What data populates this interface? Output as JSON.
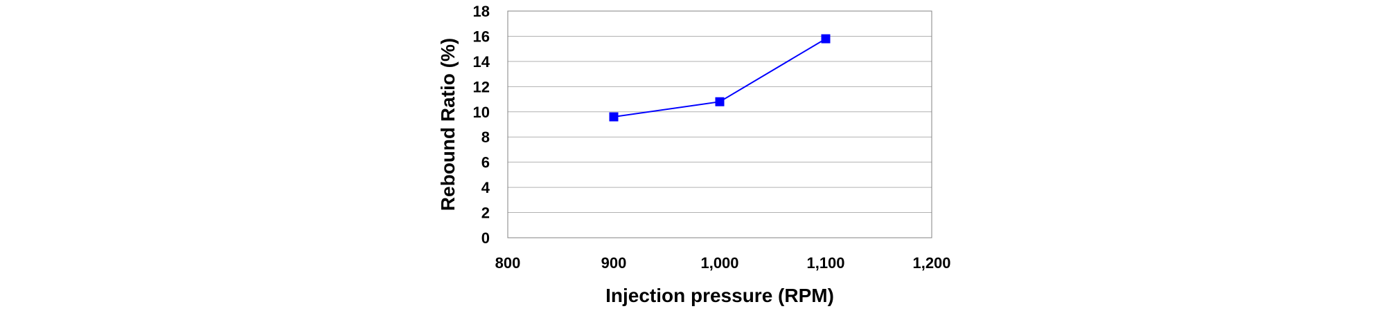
{
  "chart_data": {
    "type": "line",
    "xlabel": "Injection pressure (RPM)",
    "ylabel": "Rebound Ratio (%)",
    "xlim": [
      800,
      1200
    ],
    "ylim": [
      0,
      18
    ],
    "x_ticks": [
      800,
      900,
      1000,
      1100,
      1200
    ],
    "x_tick_labels": [
      "800",
      "900",
      "1,000",
      "1,100",
      "1,200"
    ],
    "y_ticks": [
      0,
      2,
      4,
      6,
      8,
      10,
      12,
      14,
      16,
      18
    ],
    "y_tick_labels": [
      "0",
      "2",
      "4",
      "6",
      "8",
      "10",
      "12",
      "14",
      "16",
      "18"
    ],
    "grid": "horizontal",
    "legend": "none",
    "series": [
      {
        "color": "#0000ff",
        "marker": "square",
        "x": [
          900,
          1000,
          1100
        ],
        "y": [
          9.6,
          10.8,
          15.8
        ]
      }
    ]
  }
}
